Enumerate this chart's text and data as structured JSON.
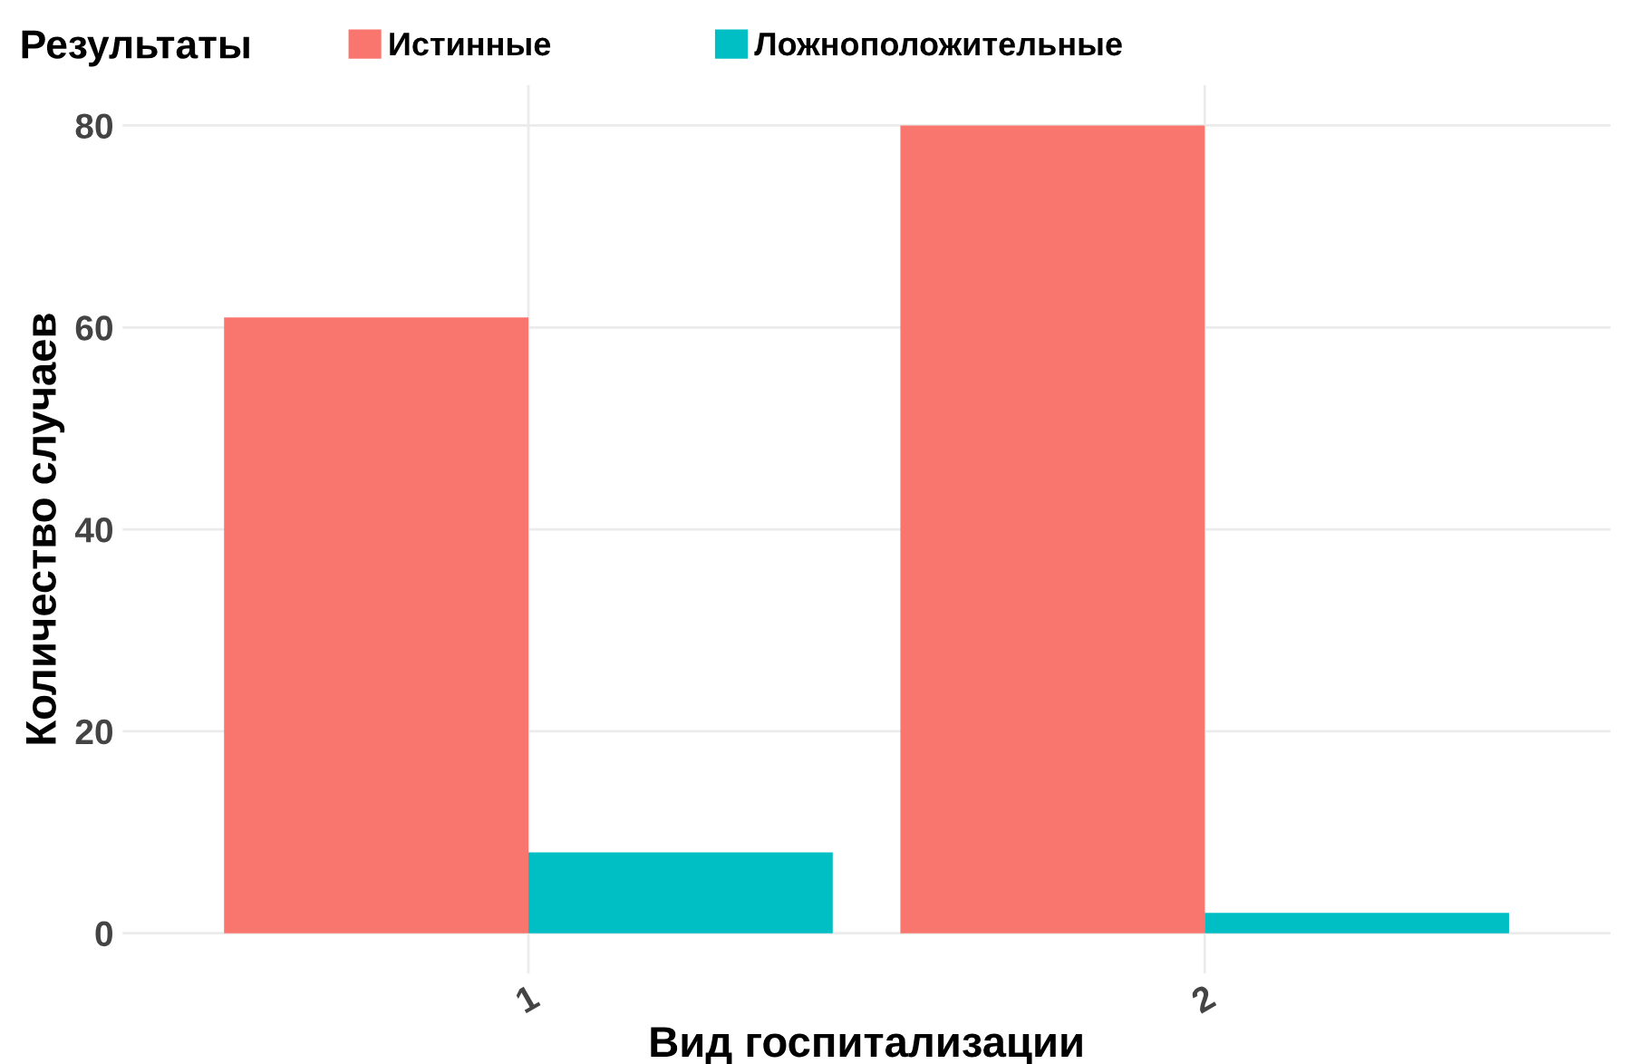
{
  "chart_data": {
    "type": "bar",
    "legend_title": "Результаты",
    "xlabel": "Вид госпитализации",
    "ylabel": "Количество случаев",
    "categories": [
      "1",
      "2"
    ],
    "series": [
      {
        "name": "Истинные",
        "color": "#f8766d",
        "values": [
          61,
          80
        ]
      },
      {
        "name": "Ложноположительные",
        "color": "#00bfc4",
        "values": [
          8,
          2
        ]
      }
    ],
    "ylim": [
      -4,
      84
    ],
    "yticks": [
      0,
      20,
      40,
      60,
      80
    ],
    "grid": true,
    "legend": "top"
  }
}
